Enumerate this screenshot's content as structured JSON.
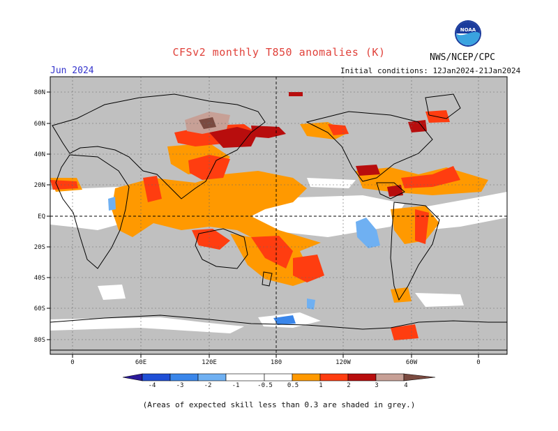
{
  "header": {
    "title": "CFSv2 monthly T850 anomalies (K)",
    "agency": "NWS/NCEP/CPC",
    "month": "Jun 2024",
    "initial_conditions": "Initial conditions: 12Jan2024-21Jan2024",
    "logo_text": "NOAA"
  },
  "footer": {
    "note": "(Areas of expected skill less than 0.3 are shaded in grey.)"
  },
  "map": {
    "lon_labels": [
      "0",
      "60E",
      "120E",
      "180",
      "120W",
      "60W",
      "0"
    ],
    "lat_labels": [
      "80N",
      "60N",
      "40N",
      "20N",
      "EQ",
      "20S",
      "40S",
      "60S",
      "80S"
    ],
    "low_skill_color": "#c0c0c0",
    "neutral_color": "#ffffff"
  },
  "colorbar": {
    "labels": [
      "-4",
      "-3",
      "-2",
      "-1",
      "-0.5",
      "0.5",
      "1",
      "2",
      "3",
      "4"
    ],
    "colors": [
      "#2b1a9a",
      "#1f4fd6",
      "#3a86ea",
      "#6fb0f2",
      "#ffffff",
      "#ff9900",
      "#ff3d10",
      "#b80d0d",
      "#c7a096",
      "#7a4a40"
    ]
  }
}
